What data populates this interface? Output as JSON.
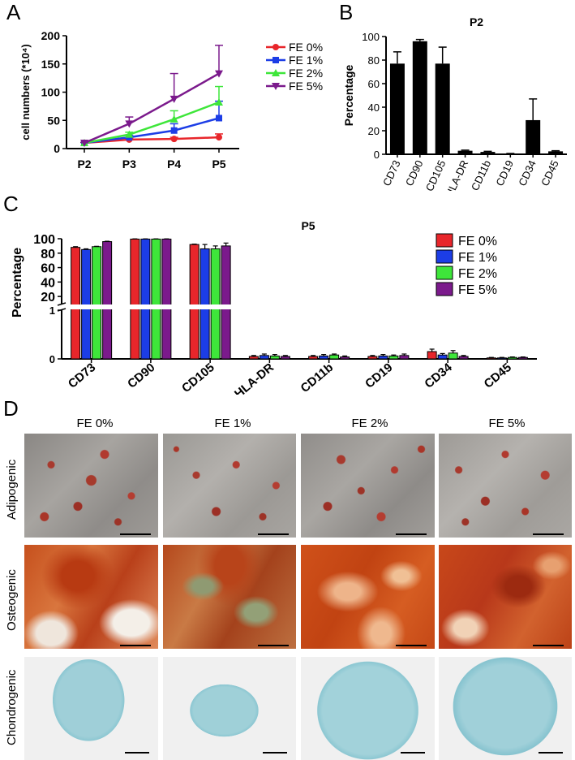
{
  "panels": {
    "a": {
      "letter": "A"
    },
    "b": {
      "letter": "B"
    },
    "c": {
      "letter": "C"
    },
    "d": {
      "letter": "D"
    }
  },
  "chart_data": [
    {
      "panel": "A",
      "type": "line",
      "title": "",
      "xlabel": "",
      "ylabel": "cell numbers (*10⁴)",
      "categories": [
        "P2",
        "P3",
        "P4",
        "P5"
      ],
      "ylim": [
        0,
        200
      ],
      "yticks": [
        0,
        50,
        100,
        150,
        200
      ],
      "legend": "right",
      "series": [
        {
          "name": "FE 0%",
          "color": "#e8262b",
          "marker": "circle",
          "values": [
            10,
            16,
            17,
            20
          ],
          "errors": [
            1,
            2,
            3,
            6
          ]
        },
        {
          "name": "FE 1%",
          "color": "#1c3de6",
          "marker": "square",
          "values": [
            10,
            20,
            32,
            54
          ],
          "errors": [
            1,
            3,
            12,
            30
          ]
        },
        {
          "name": "FE 2%",
          "color": "#3ee63a",
          "marker": "triangle",
          "values": [
            10,
            25,
            52,
            82
          ],
          "errors": [
            1,
            4,
            15,
            28
          ]
        },
        {
          "name": "FE 5%",
          "color": "#7b1a8c",
          "marker": "tri-down",
          "values": [
            10,
            44,
            88,
            133
          ],
          "errors": [
            1,
            12,
            45,
            50
          ]
        }
      ]
    },
    {
      "panel": "B",
      "type": "bar",
      "title": "P2",
      "xlabel": "",
      "ylabel": "Percentage",
      "categories": [
        "CD73",
        "CD90",
        "CD105",
        "HLA-DR",
        "CD11b",
        "CD19",
        "CD34",
        "CD45"
      ],
      "values": [
        77,
        96,
        77,
        3,
        2,
        0.5,
        29,
        2.5
      ],
      "errors": [
        10,
        1.5,
        14,
        0.5,
        0.5,
        0.2,
        18,
        0.5
      ],
      "ylim": [
        0,
        100
      ],
      "yticks": [
        0,
        20,
        40,
        60,
        80,
        100
      ],
      "color": "#000000"
    },
    {
      "panel": "C",
      "type": "bar",
      "title": "P5",
      "xlabel": "",
      "ylabel": "Percentage",
      "categories": [
        "CD73",
        "CD90",
        "CD105",
        "HLA-DR",
        "CD11b",
        "CD19",
        "CD34",
        "CD45"
      ],
      "axis_break": [
        1,
        10
      ],
      "yticks_lower": [
        0,
        1
      ],
      "yticks_upper": [
        20,
        40,
        60,
        80,
        100
      ],
      "ylim": [
        0,
        100
      ],
      "legend": "right",
      "series": [
        {
          "name": "FE 0%",
          "color": "#e8262b",
          "values": [
            88,
            99.5,
            92,
            0.05,
            0.05,
            0.05,
            0.15,
            0.02
          ],
          "errors": [
            1,
            0.3,
            0.5,
            0.02,
            0.02,
            0.02,
            0.05,
            0.01
          ]
        },
        {
          "name": "FE 1%",
          "color": "#1c3de6",
          "values": [
            85,
            99.5,
            86,
            0.07,
            0.06,
            0.06,
            0.08,
            0.02
          ],
          "errors": [
            1,
            0.3,
            6,
            0.03,
            0.03,
            0.03,
            0.03,
            0.01
          ]
        },
        {
          "name": "FE 2%",
          "color": "#3ee63a",
          "values": [
            89,
            99.5,
            86,
            0.06,
            0.08,
            0.06,
            0.12,
            0.03
          ],
          "errors": [
            0.5,
            0.3,
            4,
            0.03,
            0.02,
            0.02,
            0.05,
            0.01
          ]
        },
        {
          "name": "FE 5%",
          "color": "#7b1a8c",
          "values": [
            96,
            99.5,
            90,
            0.05,
            0.04,
            0.07,
            0.05,
            0.03
          ],
          "errors": [
            0.5,
            0.3,
            4,
            0.02,
            0.02,
            0.03,
            0.02,
            0.01
          ]
        }
      ]
    }
  ],
  "micrographs": {
    "columns": [
      "FE 0%",
      "FE 1%",
      "FE 2%",
      "FE 5%"
    ],
    "rows": [
      {
        "label": "Adipogenic"
      },
      {
        "label": "Osteogenic"
      },
      {
        "label": "Chondrogenic"
      }
    ]
  }
}
